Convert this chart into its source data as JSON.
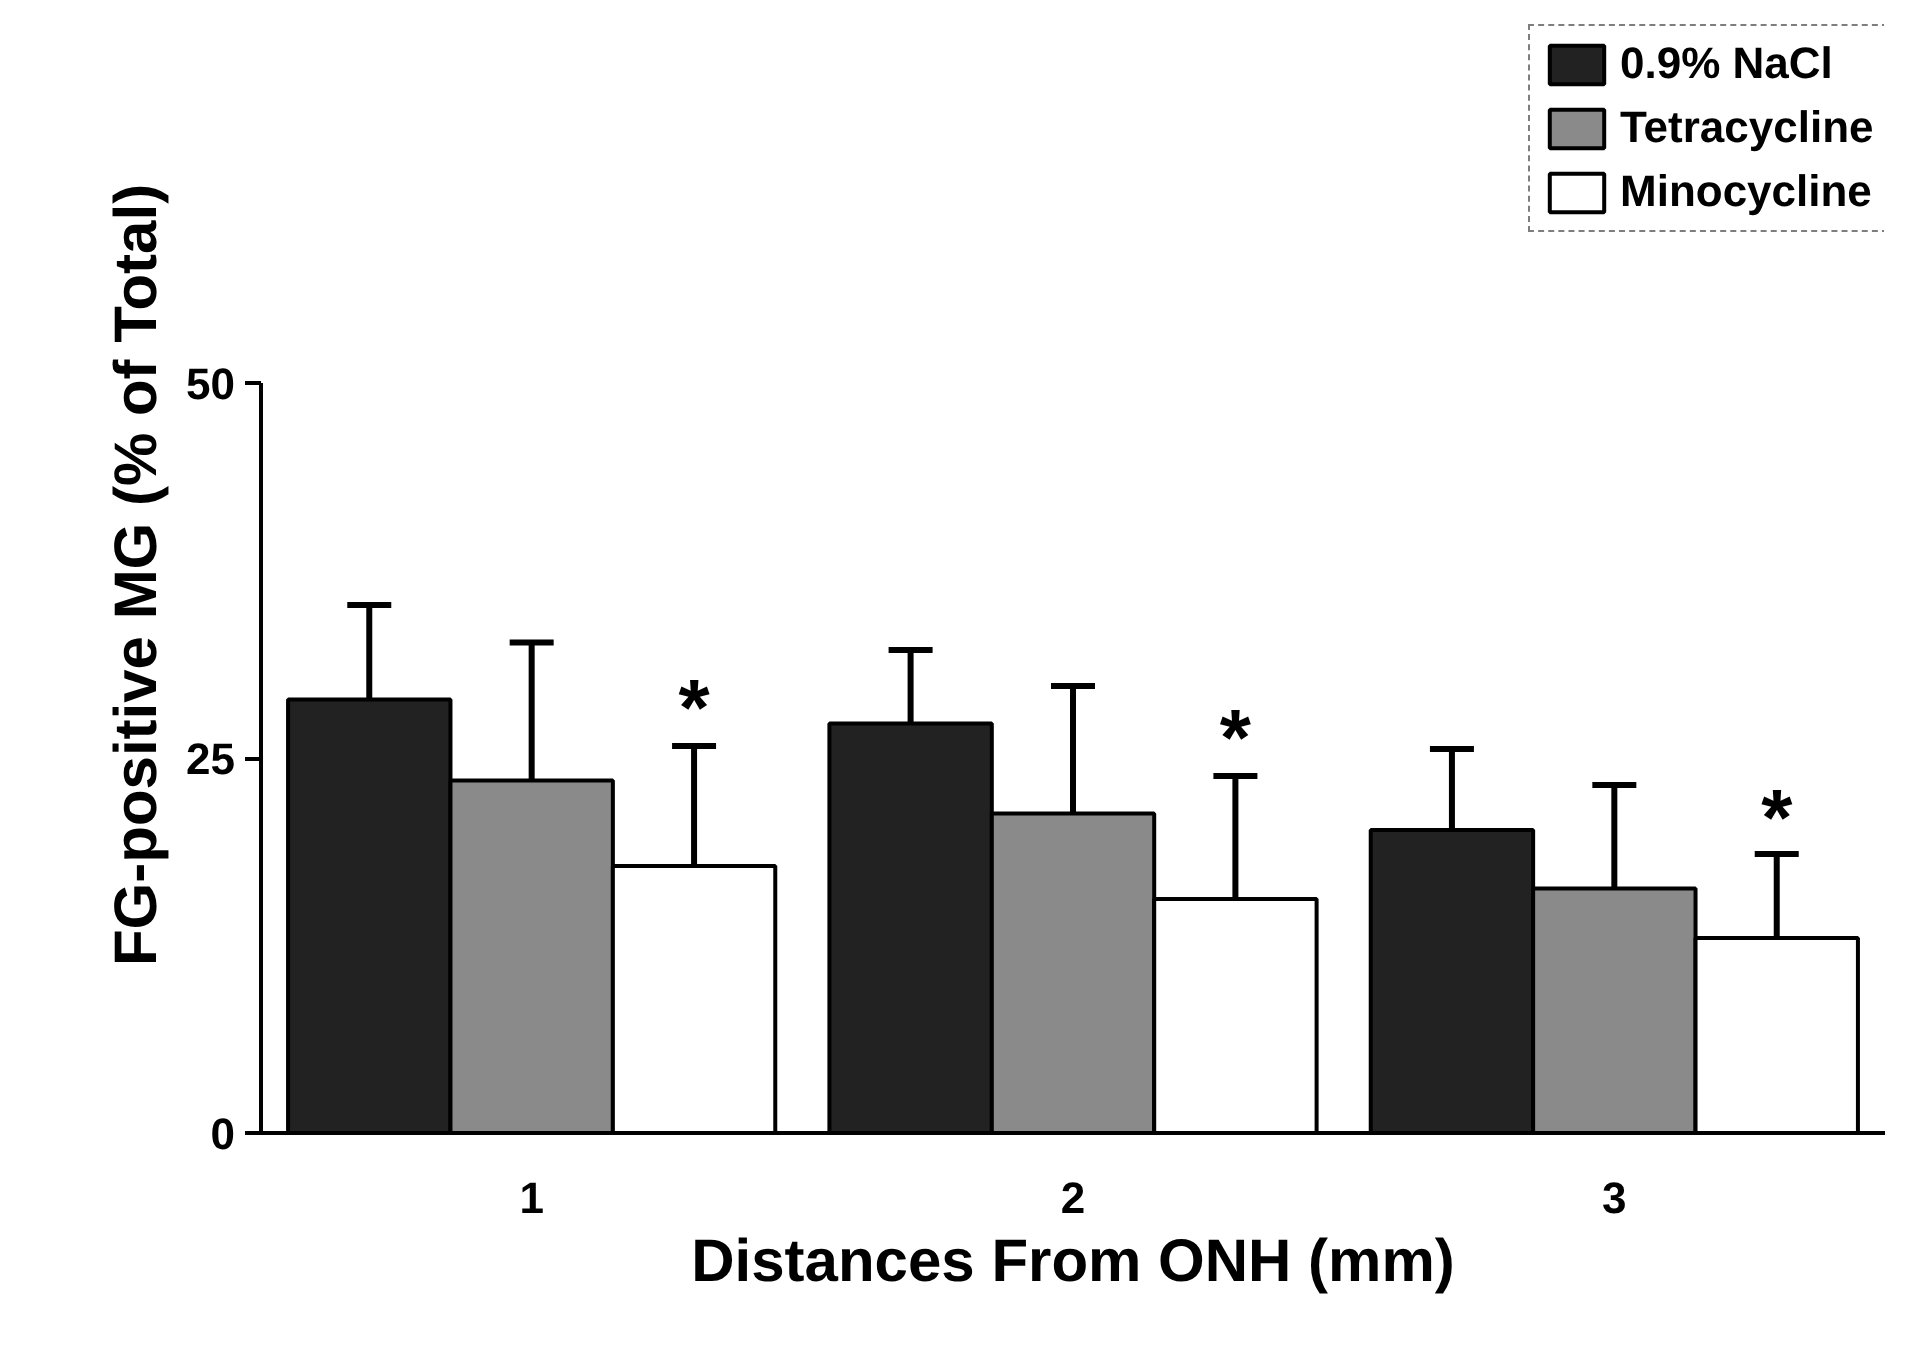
{
  "chart_data": {
    "type": "bar",
    "xlabel": "Distances From ONH (mm)",
    "ylabel": "FG-positive MG (% of Total)",
    "categories": [
      "1",
      "2",
      "3"
    ],
    "series": [
      {
        "name": "0.9% NaCl",
        "color": "#222222",
        "values": [
          28.9,
          27.3,
          20.2
        ],
        "errors": [
          6.3,
          4.9,
          5.4
        ]
      },
      {
        "name": "Tetracycline",
        "color": "#8a8a8a",
        "values": [
          23.5,
          21.3,
          16.3
        ],
        "errors": [
          9.2,
          8.5,
          6.9
        ]
      },
      {
        "name": "Minocycline",
        "color": "#ffffff",
        "values": [
          17.8,
          15.6,
          13.0
        ],
        "errors": [
          8.0,
          8.2,
          5.6
        ]
      }
    ],
    "ylim": [
      0,
      50
    ],
    "yticks": [
      0,
      25,
      50
    ],
    "grid": false,
    "legend": "top right",
    "annotations": [
      {
        "text": "*",
        "x": "1",
        "y": 27.2
      },
      {
        "text": "*",
        "x": "2",
        "y": 25.2
      },
      {
        "text": "*",
        "x": "3",
        "y": 19.9
      }
    ]
  }
}
